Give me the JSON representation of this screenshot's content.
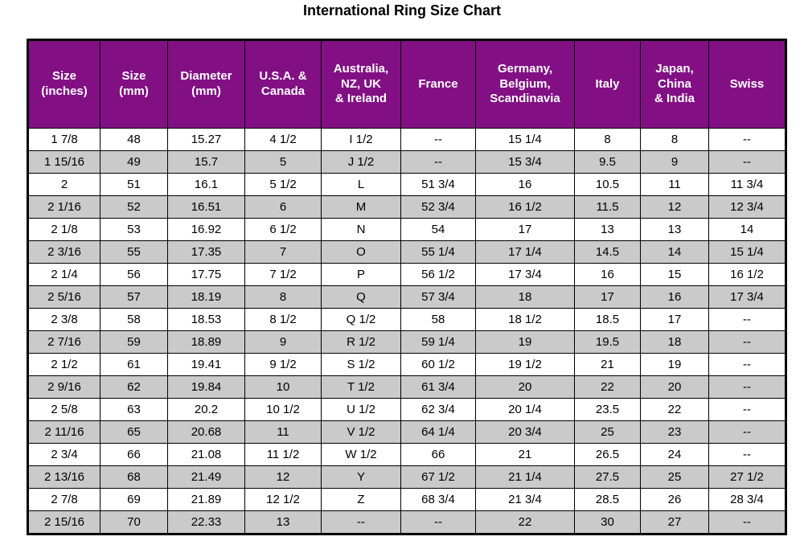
{
  "title": "International Ring Size Chart",
  "colors": {
    "header_bg": "#831383",
    "header_text": "#FFFFFF",
    "row_bg": "#FFFFFF",
    "row_alt_bg": "#C9C9C9",
    "border": "#000000",
    "title_text": "#000000",
    "body_text": "#000000"
  },
  "chart_data": {
    "type": "table",
    "title": "International Ring Size Chart",
    "columns": [
      "Size\n(inches)",
      "Size\n(mm)",
      "Diameter\n(mm)",
      "U.S.A. &\nCanada",
      "Australia,\nNZ, UK\n& Ireland",
      "France",
      "Germany,\nBelgium,\nScandinavia",
      "Italy",
      "Japan,\nChina\n& India",
      "Swiss"
    ],
    "rows": [
      [
        "1 7/8",
        "48",
        "15.27",
        "4 1/2",
        "I 1/2",
        "--",
        "15 1/4",
        "8",
        "8",
        "--"
      ],
      [
        "1 15/16",
        "49",
        "15.7",
        "5",
        "J 1/2",
        "--",
        "15 3/4",
        "9.5",
        "9",
        "--"
      ],
      [
        "2",
        "51",
        "16.1",
        "5 1/2",
        "L",
        "51 3/4",
        "16",
        "10.5",
        "11",
        "11 3/4"
      ],
      [
        "2 1/16",
        "52",
        "16.51",
        "6",
        "M",
        "52 3/4",
        "16 1/2",
        "11.5",
        "12",
        "12 3/4"
      ],
      [
        "2 1/8",
        "53",
        "16.92",
        "6 1/2",
        "N",
        "54",
        "17",
        "13",
        "13",
        "14"
      ],
      [
        "2 3/16",
        "55",
        "17.35",
        "7",
        "O",
        "55 1/4",
        "17 1/4",
        "14.5",
        "14",
        "15 1/4"
      ],
      [
        "2 1/4",
        "56",
        "17.75",
        "7 1/2",
        "P",
        "56 1/2",
        "17 3/4",
        "16",
        "15",
        "16 1/2"
      ],
      [
        "2 5/16",
        "57",
        "18.19",
        "8",
        "Q",
        "57 3/4",
        "18",
        "17",
        "16",
        "17 3/4"
      ],
      [
        "2 3/8",
        "58",
        "18.53",
        "8 1/2",
        "Q 1/2",
        "58",
        "18 1/2",
        "18.5",
        "17",
        "--"
      ],
      [
        "2 7/16",
        "59",
        "18.89",
        "9",
        "R 1/2",
        "59 1/4",
        "19",
        "19.5",
        "18",
        "--"
      ],
      [
        "2 1/2",
        "61",
        "19.41",
        "9 1/2",
        "S 1/2",
        "60 1/2",
        "19 1/2",
        "21",
        "19",
        "--"
      ],
      [
        "2 9/16",
        "62",
        "19.84",
        "10",
        "T 1/2",
        "61 3/4",
        "20",
        "22",
        "20",
        "--"
      ],
      [
        "2 5/8",
        "63",
        "20.2",
        "10 1/2",
        "U 1/2",
        "62 3/4",
        "20 1/4",
        "23.5",
        "22",
        "--"
      ],
      [
        "2 11/16",
        "65",
        "20.68",
        "11",
        "V 1/2",
        "64 1/4",
        "20 3/4",
        "25",
        "23",
        "--"
      ],
      [
        "2 3/4",
        "66",
        "21.08",
        "11 1/2",
        "W 1/2",
        "66",
        "21",
        "26.5",
        "24",
        "--"
      ],
      [
        "2 13/16",
        "68",
        "21.49",
        "12",
        "Y",
        "67 1/2",
        "21 1/4",
        "27.5",
        "25",
        "27 1/2"
      ],
      [
        "2 7/8",
        "69",
        "21.89",
        "12 1/2",
        "Z",
        "68 3/4",
        "21 3/4",
        "28.5",
        "26",
        "28 3/4"
      ],
      [
        "2 15/16",
        "70",
        "22.33",
        "13",
        "--",
        "--",
        "22",
        "30",
        "27",
        "--"
      ]
    ]
  }
}
